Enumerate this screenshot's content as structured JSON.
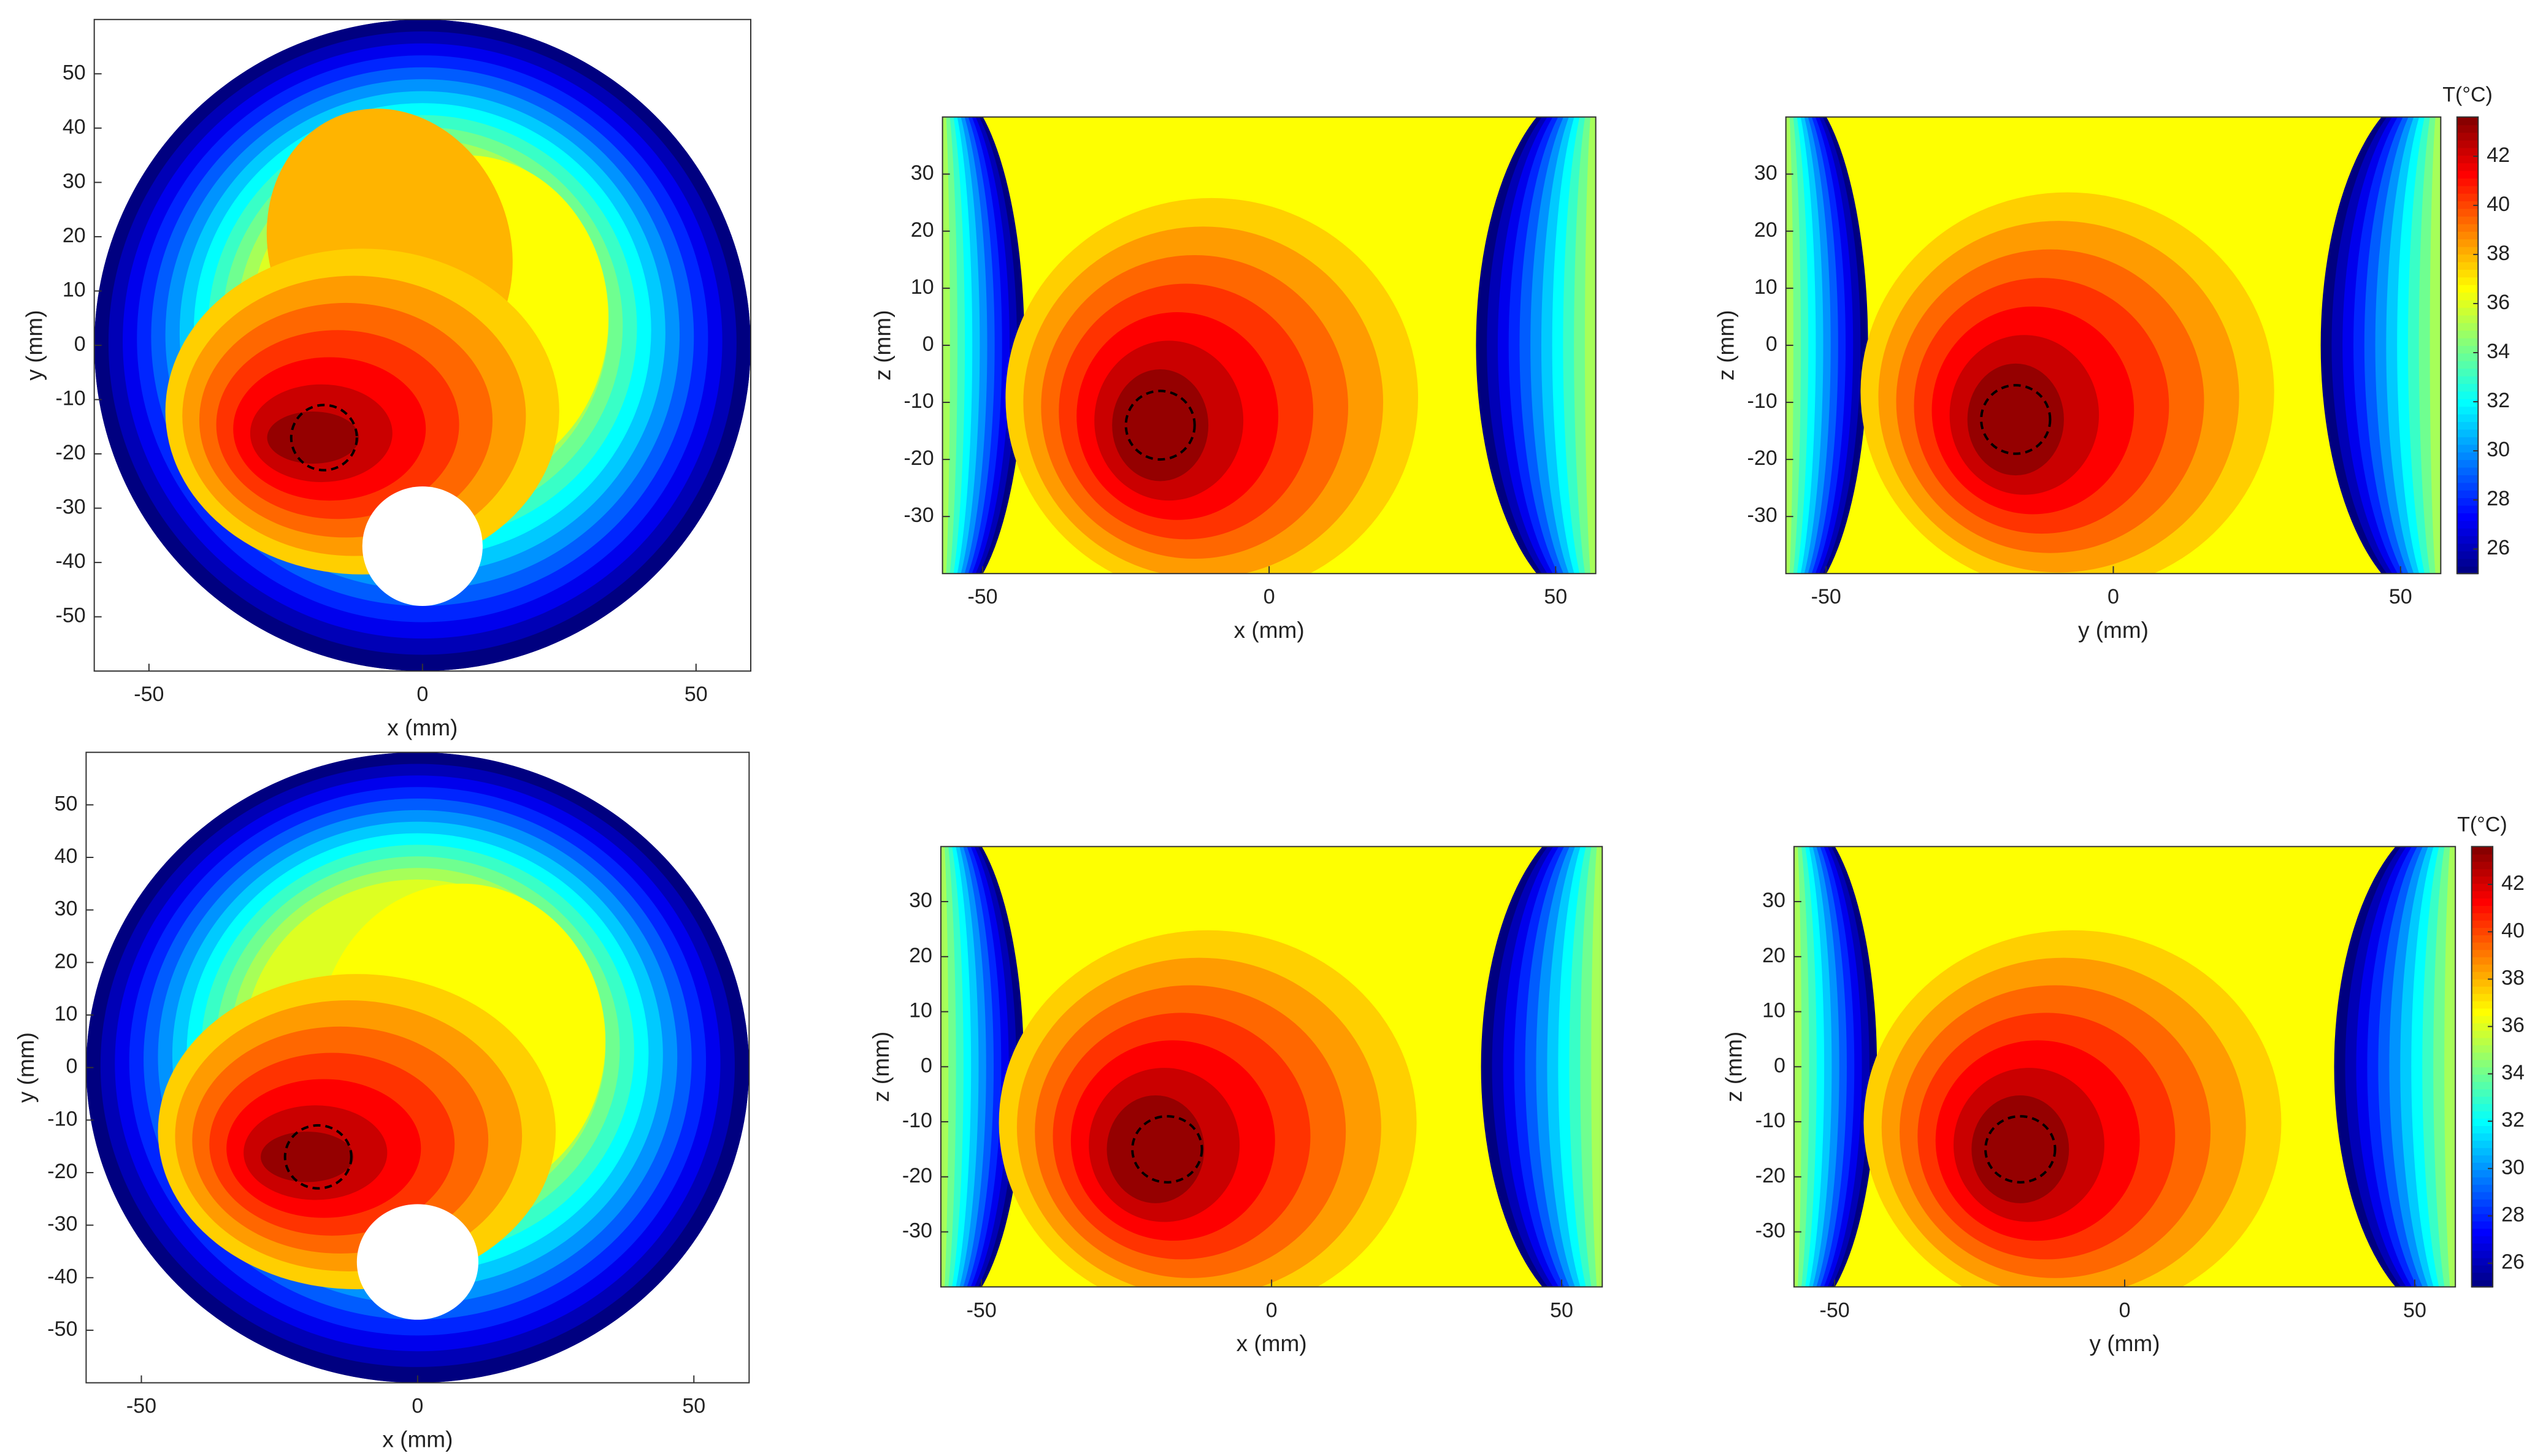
{
  "chart_data": [
    {
      "type": "contour",
      "shape": "circle",
      "xlabel": "x (mm)",
      "ylabel": "y (mm)",
      "xlim": [
        -60,
        60
      ],
      "ylim": [
        -60,
        60
      ],
      "xticks": [
        -50,
        0,
        50
      ],
      "yticks": [
        -50,
        -40,
        -30,
        -20,
        -10,
        0,
        10,
        20,
        30,
        40,
        50
      ]
    },
    {
      "type": "contour",
      "shape": "rect",
      "xlabel": "x (mm)",
      "ylabel": "z (mm)",
      "xlim": [
        -57,
        57
      ],
      "ylim": [
        -40,
        40
      ],
      "xticks": [
        -50,
        0,
        50
      ],
      "yticks": [
        -30,
        -20,
        -10,
        0,
        10,
        20,
        30
      ]
    },
    {
      "type": "contour",
      "shape": "rect",
      "xlabel": "y (mm)",
      "ylabel": "z (mm)",
      "xlim": [
        -57,
        57
      ],
      "ylim": [
        -40,
        40
      ],
      "xticks": [
        -50,
        0,
        50
      ],
      "yticks": [
        -30,
        -20,
        -10,
        0,
        10,
        20,
        30
      ],
      "colorbar": {
        "label": "T(°C)",
        "clim": [
          25,
          43.6
        ],
        "ticks": [
          26,
          28,
          30,
          32,
          34,
          36,
          38,
          40,
          42
        ]
      }
    },
    {
      "type": "contour",
      "shape": "circle",
      "xlabel": "x (mm)",
      "ylabel": "y (mm)",
      "xlim": [
        -60,
        60
      ],
      "ylim": [
        -60,
        60
      ],
      "xticks": [
        -50,
        0,
        50
      ],
      "yticks": [
        -50,
        -40,
        -30,
        -20,
        -10,
        0,
        10,
        20,
        30,
        40,
        50
      ]
    },
    {
      "type": "contour",
      "shape": "rect",
      "xlabel": "x (mm)",
      "ylabel": "z (mm)",
      "xlim": [
        -57,
        57
      ],
      "ylim": [
        -40,
        40
      ],
      "xticks": [
        -50,
        0,
        50
      ],
      "yticks": [
        -30,
        -20,
        -10,
        0,
        10,
        20,
        30
      ]
    },
    {
      "type": "contour",
      "shape": "rect",
      "xlabel": "y (mm)",
      "ylabel": "z (mm)",
      "xlim": [
        -57,
        57
      ],
      "ylim": [
        -40,
        40
      ],
      "xticks": [
        -50,
        0,
        50
      ],
      "yticks": [
        -30,
        -20,
        -10,
        0,
        10,
        20,
        30
      ],
      "colorbar": {
        "label": "T(°C)",
        "clim": [
          25,
          43.6
        ],
        "ticks": [
          26,
          28,
          30,
          32,
          34,
          36,
          38,
          40,
          42
        ]
      }
    }
  ]
}
